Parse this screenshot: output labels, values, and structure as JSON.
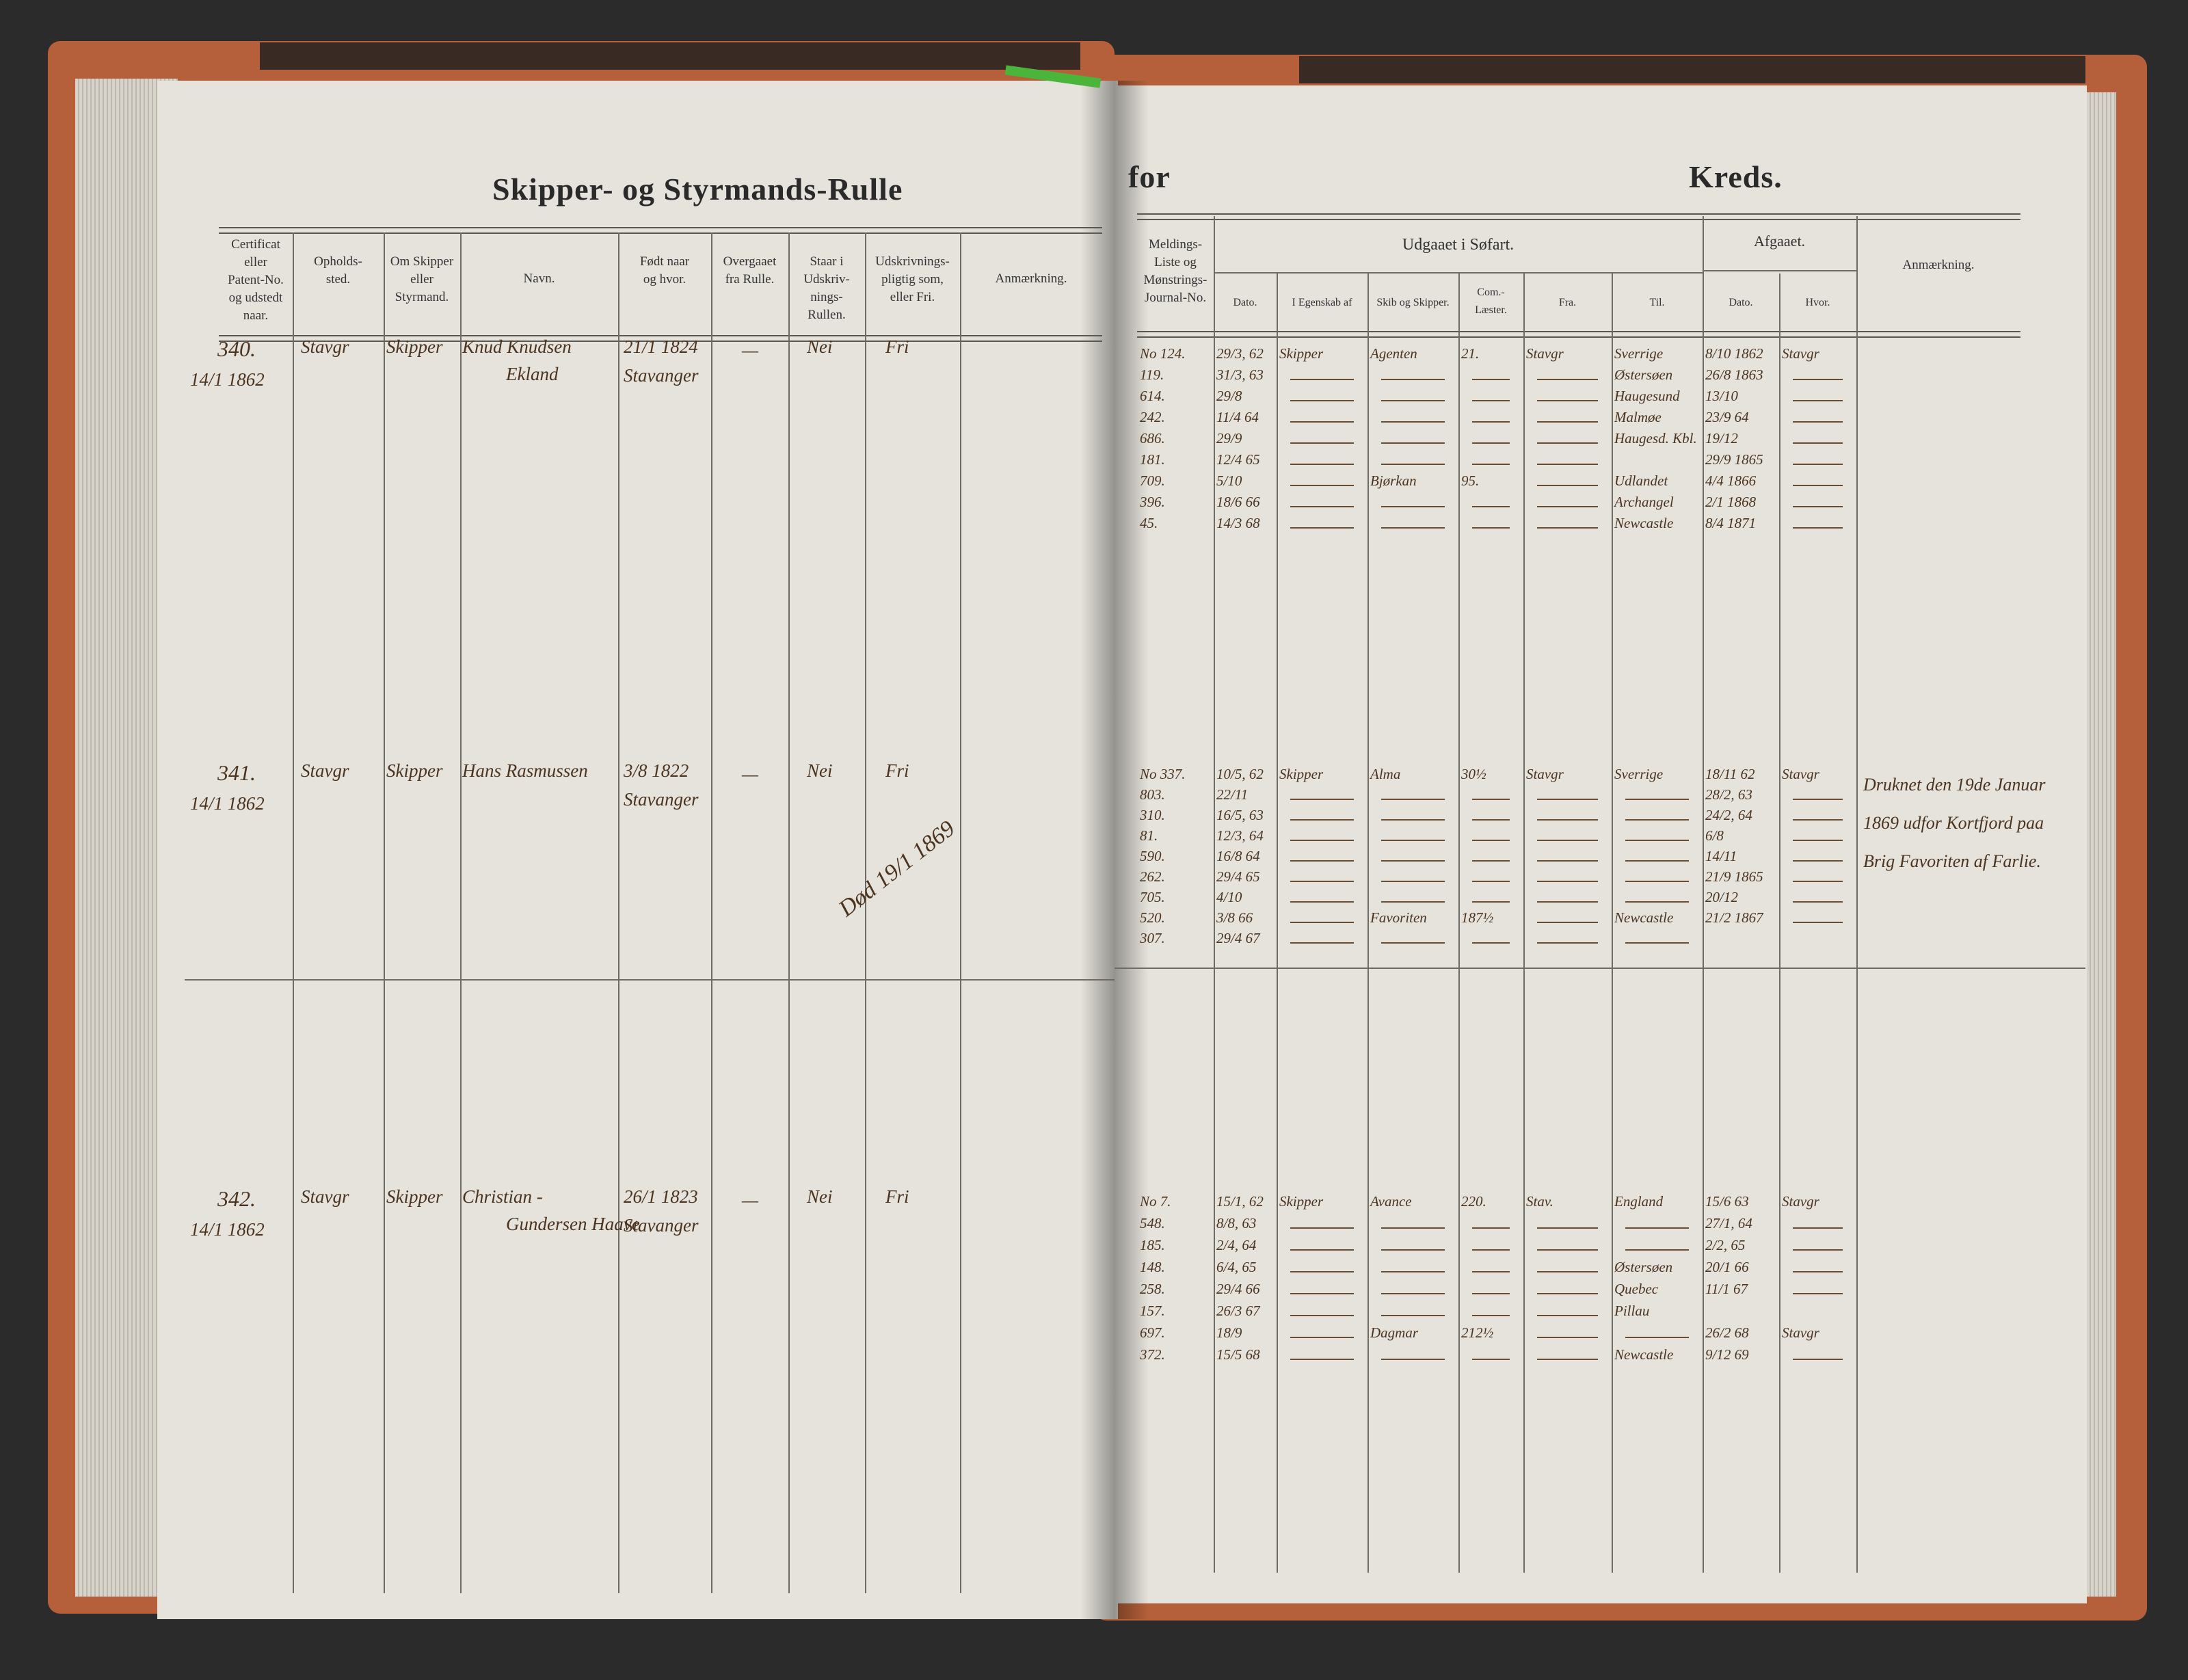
{
  "left_page": {
    "title": "Skipper- og Styrmands-Rulle",
    "columns": [
      "Certificat\neller\nPatent-No.\nog udstedt\nnaar.",
      "Opholds-\nsted.",
      "Om Skipper\neller\nStyrmand.",
      "Navn.",
      "Født naar\nog hvor.",
      "Overgaaet\nfra Rulle.",
      "Staar i\nUdskriv-\nnings-\nRullen.",
      "Udskrivnings-\npligtig som,\neller Fri.",
      "Anmærkning."
    ],
    "rows": [
      {
        "cert_no": "340.",
        "cert_date": "14/1 1862",
        "residence": "Stavgr",
        "role": "Skipper",
        "name": "Knud Knudsen",
        "name2": "Ekland",
        "born": "21/1 1824",
        "born_place": "Stavanger",
        "transferred": "—",
        "in_roll": "Nei",
        "liable": "Fri",
        "note": ""
      },
      {
        "cert_no": "341.",
        "cert_date": "14/1 1862",
        "residence": "Stavgr",
        "role": "Skipper",
        "name": "Hans Rasmussen",
        "name2": "",
        "born": "3/8 1822",
        "born_place": "Stavanger",
        "transferred": "—",
        "in_roll": "Nei",
        "liable": "Fri",
        "note": "Død 19/1 1869"
      },
      {
        "cert_no": "342.",
        "cert_date": "14/1 1862",
        "residence": "Stavgr",
        "role": "Skipper",
        "name": "Christian -",
        "name2": "Gundersen Haave",
        "born": "26/1 1823",
        "born_place": "Stavanger",
        "transferred": "—",
        "in_roll": "Nei",
        "liable": "Fri",
        "note": ""
      }
    ]
  },
  "right_page": {
    "title_for": "for",
    "title_kreds": "Kreds.",
    "group_udgaaet": "Udgaaet i Søfart.",
    "group_afgaaet": "Afgaaet.",
    "columns": [
      "Meldings-\nListe og\nMønstrings-\nJournal-No.",
      "Dato.",
      "I Egenskab af",
      "Skib og Skipper.",
      "Com.-\nLæster.",
      "Fra.",
      "Til.",
      "Dato.",
      "Hvor.",
      "Anmærkning."
    ],
    "blocks": [
      {
        "entries": [
          [
            "No 124.",
            "29/3, 62",
            "Skipper",
            "Agenten",
            "21.",
            "Stavgr",
            "Sverrige",
            "8/10 1862",
            "Stavgr"
          ],
          [
            "119.",
            "31/3, 63",
            "—",
            "—",
            "—",
            "—",
            "Østersøen",
            "26/8 1863",
            "—"
          ],
          [
            "614.",
            "29/8",
            "—",
            "—",
            "—",
            "—",
            "Haugesund",
            "13/10",
            "—"
          ],
          [
            "242.",
            "11/4 64",
            "—",
            "—",
            "—",
            "—",
            "Malmøe",
            "23/9 64",
            "—"
          ],
          [
            "686.",
            "29/9",
            "—",
            "—",
            "—",
            "—",
            "Haugesd. Kbl.",
            "19/12",
            "—"
          ],
          [
            "181.",
            "12/4 65",
            "—",
            "—",
            "—",
            "—",
            "",
            "29/9 1865",
            "—"
          ],
          [
            "709.",
            "5/10",
            "—",
            "Bjørkan",
            "95.",
            "—",
            "Udlandet",
            "4/4 1866",
            "—"
          ],
          [
            "396.",
            "18/6 66",
            "—",
            "—",
            "—",
            "—",
            "Archangel",
            "2/1 1868",
            "—"
          ],
          [
            "45.",
            "14/3 68",
            "—",
            "—",
            "—",
            "—",
            "Newcastle",
            "8/4 1871",
            "—"
          ]
        ],
        "note": ""
      },
      {
        "entries": [
          [
            "No 337.",
            "10/5, 62",
            "Skipper",
            "Alma",
            "30½",
            "Stavgr",
            "Sverrige",
            "18/11 62",
            "Stavgr"
          ],
          [
            "803.",
            "22/11",
            "—",
            "—",
            "—",
            "—",
            "—",
            "28/2, 63",
            "—"
          ],
          [
            "310.",
            "16/5, 63",
            "—",
            "—",
            "—",
            "—",
            "—",
            "24/2, 64",
            "—"
          ],
          [
            "81.",
            "12/3, 64",
            "—",
            "—",
            "—",
            "—",
            "—",
            "6/8",
            "—"
          ],
          [
            "590.",
            "16/8 64",
            "—",
            "—",
            "—",
            "—",
            "—",
            "14/11",
            "—"
          ],
          [
            "262.",
            "29/4 65",
            "—",
            "—",
            "—",
            "—",
            "—",
            "21/9 1865",
            "—"
          ],
          [
            "705.",
            "4/10",
            "—",
            "—",
            "—",
            "—",
            "—",
            "20/12",
            "—"
          ],
          [
            "520.",
            "3/8 66",
            "—",
            "Favoriten",
            "187½",
            "—",
            "Newcastle",
            "21/2 1867",
            "—"
          ],
          [
            "307.",
            "29/4 67",
            "—",
            "—",
            "—",
            "—",
            "—",
            "",
            ""
          ]
        ],
        "note": "Druknet den 19de Januar 1869 udfor Kortfjord paa Brig Favoriten af Farlie."
      },
      {
        "entries": [
          [
            "No 7.",
            "15/1, 62",
            "Skipper",
            "Avance",
            "220.",
            "Stav.",
            "England",
            "15/6 63",
            "Stavgr"
          ],
          [
            "548.",
            "8/8, 63",
            "—",
            "—",
            "—",
            "—",
            "—",
            "27/1, 64",
            "—"
          ],
          [
            "185.",
            "2/4, 64",
            "—",
            "—",
            "—",
            "—",
            "—",
            "2/2, 65",
            "—"
          ],
          [
            "148.",
            "6/4, 65",
            "—",
            "—",
            "—",
            "—",
            "Østersøen",
            "20/1 66",
            "—"
          ],
          [
            "258.",
            "29/4 66",
            "—",
            "—",
            "—",
            "—",
            "Quebec",
            "11/1 67",
            "—"
          ],
          [
            "157.",
            "26/3 67",
            "—",
            "—",
            "—",
            "—",
            "Pillau",
            "",
            ""
          ],
          [
            "697.",
            "18/9",
            "—",
            "Dagmar",
            "212½",
            "—",
            "—",
            "26/2 68",
            "Stavgr"
          ],
          [
            "372.",
            "15/5 68",
            "—",
            "—",
            "—",
            "—",
            "Newcastle",
            "9/12 69",
            "—"
          ]
        ],
        "note": ""
      }
    ]
  },
  "colors": {
    "ink": "#4a3420",
    "paper": "#e6e3dc",
    "cover": "#b5603a",
    "ribbon": "#4bb43a"
  }
}
